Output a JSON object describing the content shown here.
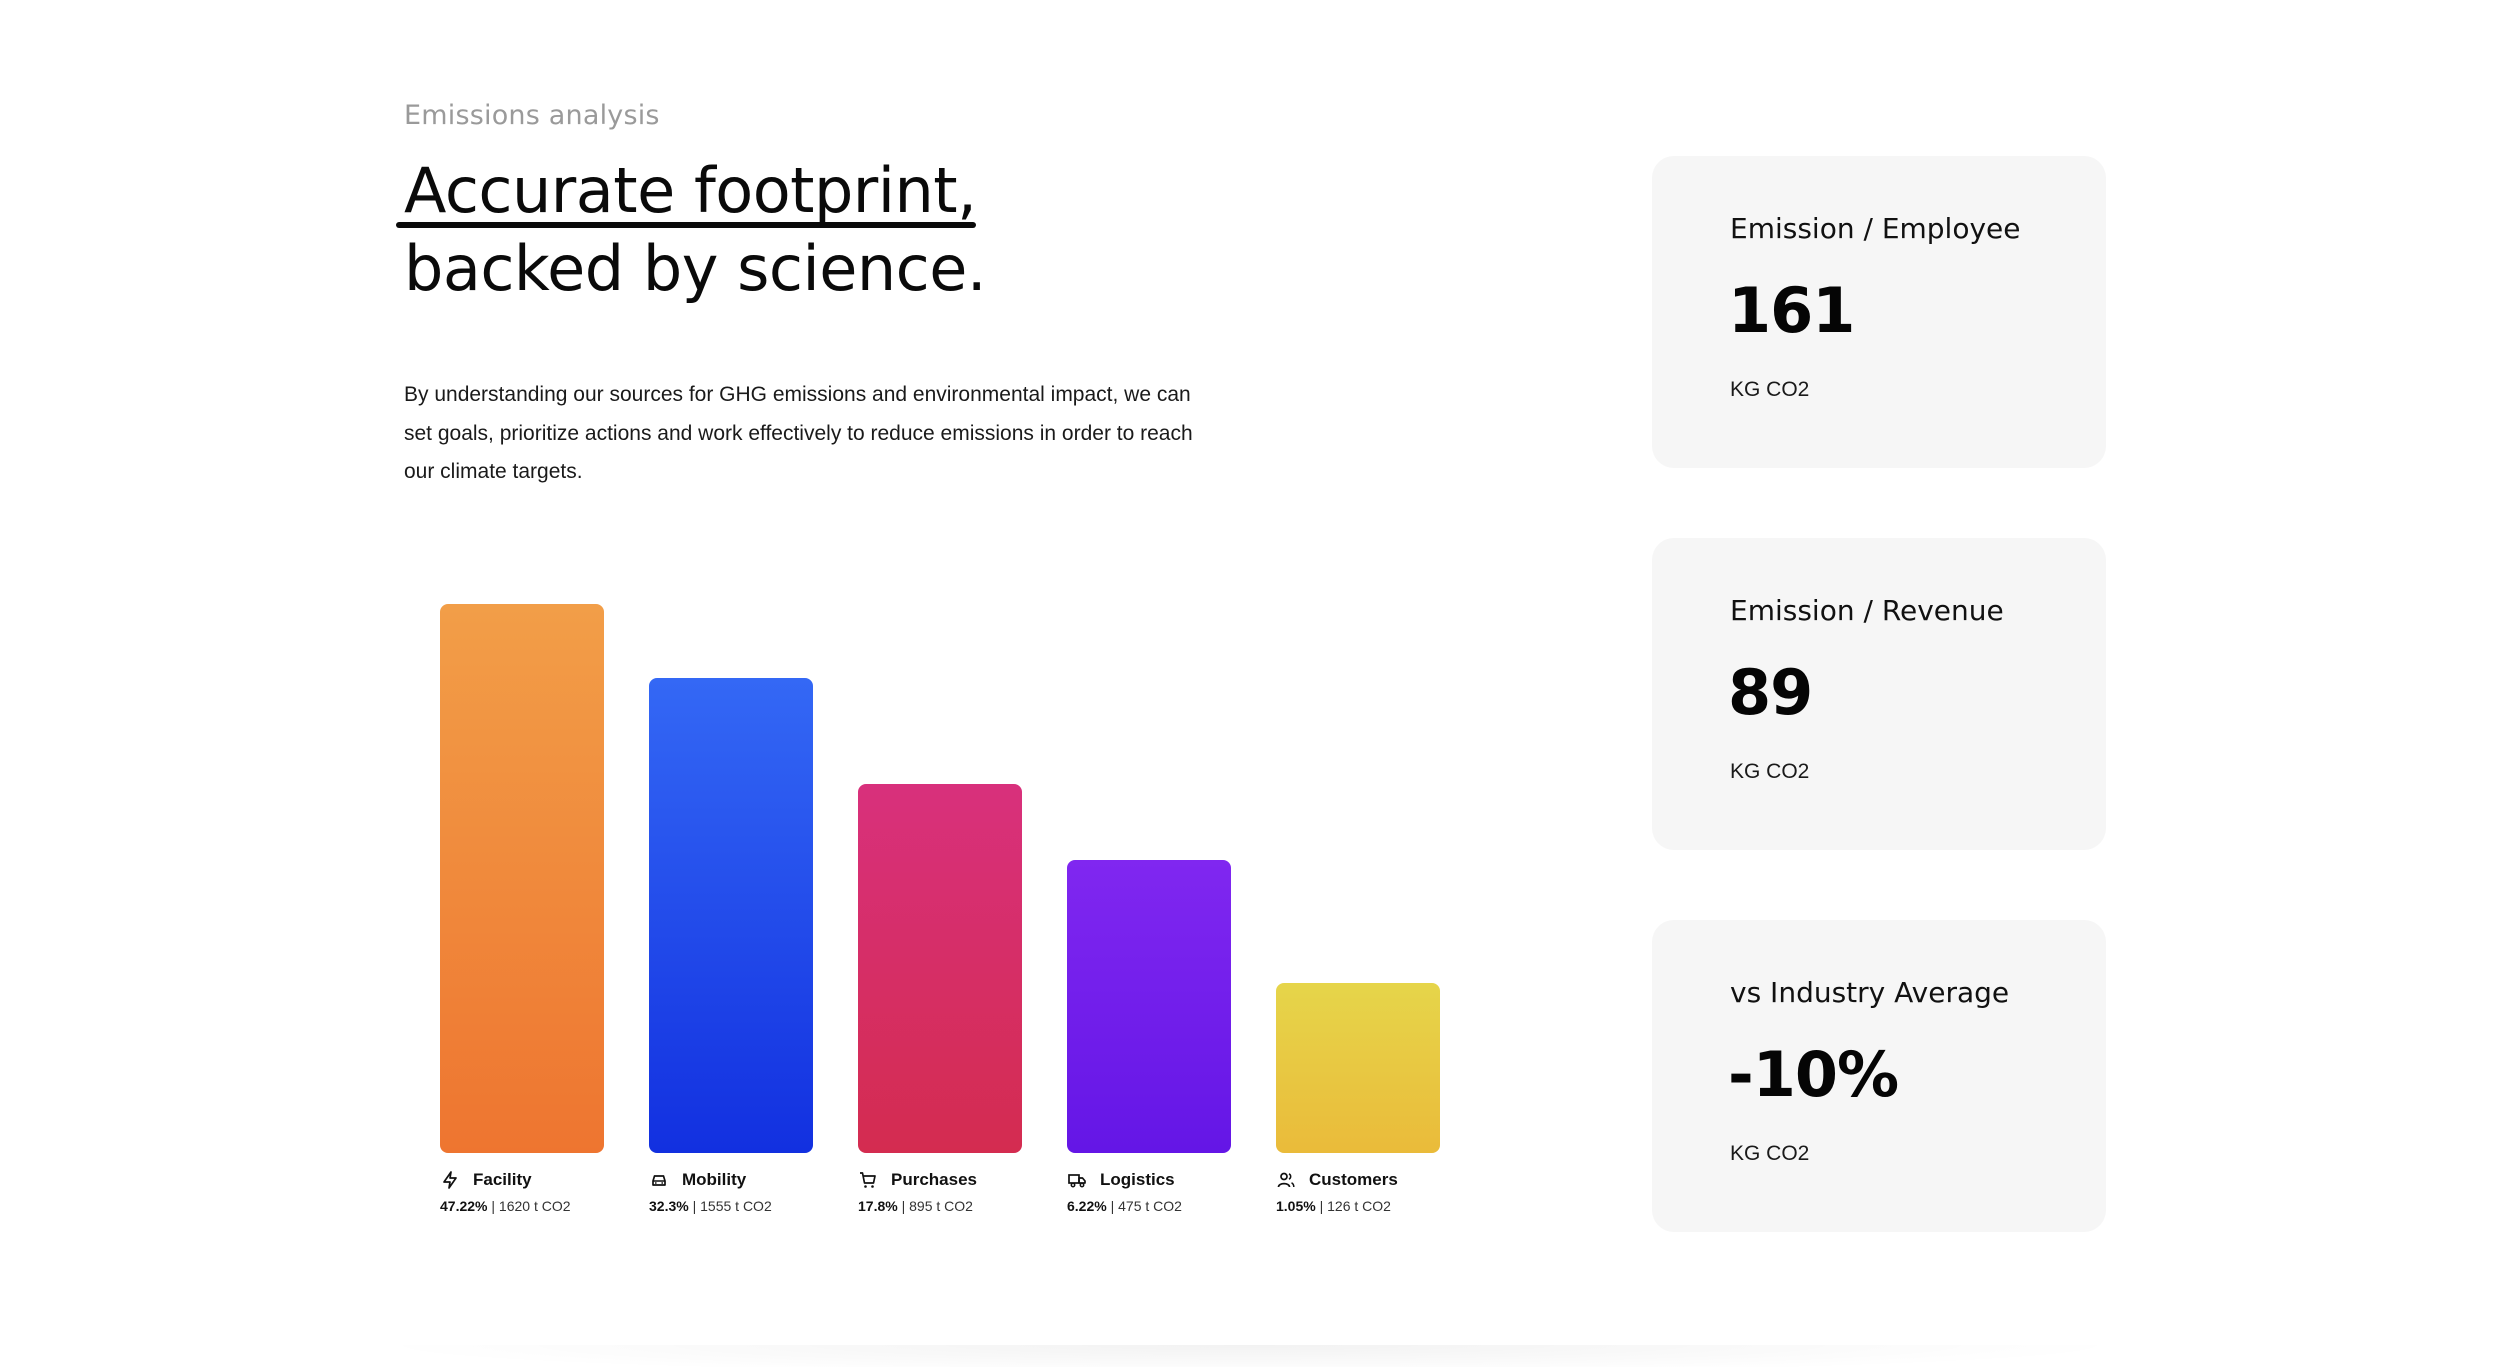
{
  "section": {
    "eyebrow": "Emissions analysis",
    "headline_line1": "Accurate footprint,",
    "headline_line2": "backed by science.",
    "description": "By understanding our sources for GHG emissions and environmental impact, we can set goals, prioritize actions and work effectively to reduce emissions in order to reach our climate targets."
  },
  "chart_data": {
    "type": "bar",
    "title": "",
    "xlabel": "",
    "ylabel": "",
    "grid": false,
    "categories": [
      "Facility",
      "Mobility",
      "Purchases",
      "Logistics",
      "Customers"
    ],
    "values": [
      1620,
      1555,
      895,
      475,
      126
    ],
    "unit": "t CO2",
    "bars": [
      {
        "label": "Facility",
        "icon": "bolt-icon",
        "percent_text": "47.22%",
        "amount_text": "1620 t CO2",
        "color_top": "#f29e48",
        "color_bottom": "#ee7530"
      },
      {
        "label": "Mobility",
        "icon": "car-icon",
        "percent_text": "32.3%",
        "amount_text": "1555 t CO2",
        "color_top": "#3468f5",
        "color_bottom": "#1230e0"
      },
      {
        "label": "Purchases",
        "icon": "cart-icon",
        "percent_text": "17.8%",
        "amount_text": "895 t CO2",
        "color_top": "#d8307c",
        "color_bottom": "#d42c50"
      },
      {
        "label": "Logistics",
        "icon": "truck-icon",
        "percent_text": "6.22%",
        "amount_text": "475 t CO2",
        "color_top": "#8027f0",
        "color_bottom": "#6416e6"
      },
      {
        "label": "Customers",
        "icon": "users-icon",
        "percent_text": "1.05%",
        "amount_text": "126 t CO2",
        "color_top": "#e6d54a",
        "color_bottom": "#eabb3a"
      }
    ],
    "bar_levels": [
      1.0,
      0.866,
      0.672,
      0.534,
      0.31
    ]
  },
  "cards": [
    {
      "title": "Emission / Employee",
      "value": "161",
      "unit": "KG CO2"
    },
    {
      "title": "Emission / Revenue",
      "value": "89",
      "unit": "KG CO2"
    },
    {
      "title": "vs Industry Average",
      "value": "-10%",
      "unit": "KG CO2"
    }
  ]
}
